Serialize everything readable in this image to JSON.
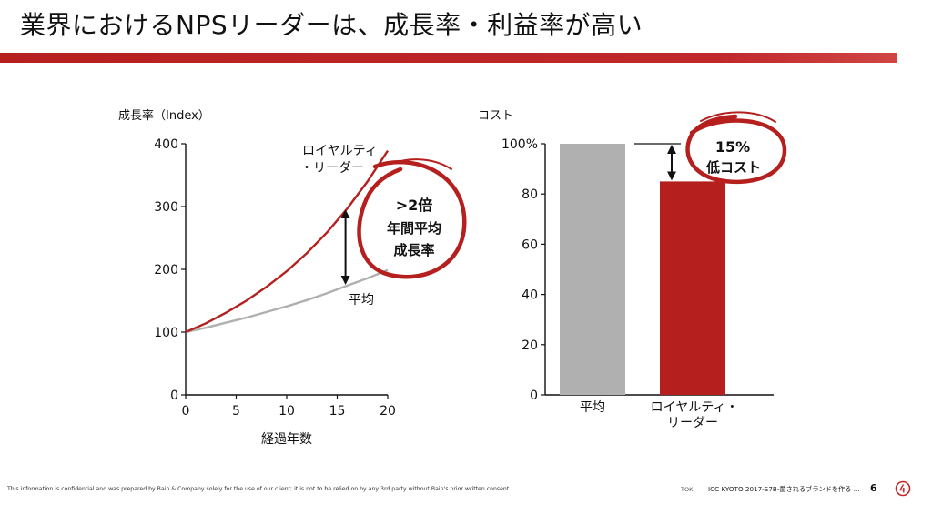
{
  "title": "業界におけるNPSリーダーは、成長率・利益率が高い",
  "colors": {
    "accent_red": "#b5201f",
    "average_gray": "#b0b0b0"
  },
  "chart_data": [
    {
      "type": "line",
      "ylabel": "成長率（Index）",
      "xlabel": "経過年数",
      "xlim": [
        0,
        20
      ],
      "ylim": [
        0,
        400
      ],
      "x_ticks": [
        "0",
        "5",
        "10",
        "15",
        "20"
      ],
      "y_ticks": [
        "0",
        "100",
        "200",
        "300",
        "400"
      ],
      "grid": false,
      "series": [
        {
          "name": "ロイヤルティ・リーダー",
          "name_lines": [
            "ロイヤルティ",
            "・リーダー"
          ],
          "color": "#b5201f",
          "x": [
            0,
            2,
            4,
            6,
            8,
            10,
            12,
            14,
            16,
            18,
            20
          ],
          "y": [
            100,
            114,
            131,
            150,
            172,
            197,
            226,
            259,
            297,
            340,
            389
          ]
        },
        {
          "name": "平均",
          "color": "#b0b0b0",
          "x": [
            0,
            2,
            4,
            6,
            8,
            10,
            12,
            14,
            16,
            18,
            20
          ],
          "y": [
            100,
            107,
            115,
            123,
            132,
            141,
            151,
            162,
            174,
            186,
            199
          ]
        }
      ],
      "annotation": {
        "lines": [
          ">2倍",
          "年間平均",
          "成長率"
        ],
        "at_x": 16
      }
    },
    {
      "type": "bar",
      "ylabel": "コスト",
      "ylim": [
        0,
        100
      ],
      "y_ticks": [
        "0",
        "20",
        "40",
        "60",
        "80",
        "100%"
      ],
      "categories": [
        "平均",
        "ロイヤルティ・リーダー"
      ],
      "category_lines": [
        [
          "平均"
        ],
        [
          "ロイヤルティ・",
          "リーダー"
        ]
      ],
      "values": [
        100,
        85
      ],
      "bar_colors": [
        "#b0b0b0",
        "#b5201f"
      ],
      "annotation": {
        "lines": [
          "15%",
          "低コスト"
        ]
      }
    }
  ],
  "footer": {
    "disclaimer": "This information is confidential and was prepared by Bain & Company solely for the use of our client; it is not to be relied on by any 3rd party without Bain's prior written consent",
    "tok": "TOK",
    "note": "ICC KYOTO 2017-S7B-愛されるブランドを作る ...",
    "page": "6"
  }
}
